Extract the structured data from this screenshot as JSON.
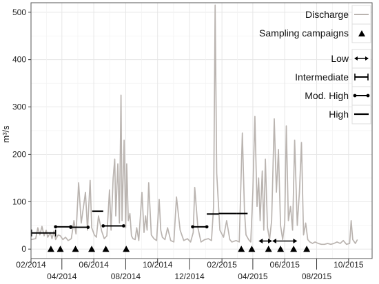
{
  "chart_data": {
    "type": "line",
    "title": "",
    "xlabel": "",
    "ylabel": "m³/s",
    "ylim": [
      -20,
      520
    ],
    "xlim": [
      "2014-02-01",
      "2015-11-15"
    ],
    "yticks": [
      "0",
      "100",
      "200",
      "300",
      "400",
      "500"
    ],
    "xticks": [
      {
        "date": "2014-02-01",
        "label": "02/2014",
        "row": "upper"
      },
      {
        "date": "2014-04-01",
        "label": "04/2014",
        "row": "lower"
      },
      {
        "date": "2014-06-01",
        "label": "06/2014",
        "row": "upper"
      },
      {
        "date": "2014-08-01",
        "label": "08/2014",
        "row": "lower"
      },
      {
        "date": "2014-10-01",
        "label": "10/2014",
        "row": "upper"
      },
      {
        "date": "2014-12-01",
        "label": "12/2014",
        "row": "lower"
      },
      {
        "date": "2015-02-01",
        "label": "02/2015",
        "row": "upper"
      },
      {
        "date": "2015-04-01",
        "label": "04/2015",
        "row": "lower"
      },
      {
        "date": "2015-06-01",
        "label": "06/2015",
        "row": "upper"
      },
      {
        "date": "2015-08-01",
        "label": "08/2015",
        "row": "lower"
      },
      {
        "date": "2015-10-01",
        "label": "10/2015",
        "row": "upper"
      }
    ],
    "grid": true,
    "legend_position": "top-right",
    "colors": {
      "discharge": "#bab4b0",
      "marks": "#000000",
      "grid": "#e6e6e6",
      "border": "#555555"
    },
    "series": [
      {
        "name": "Discharge",
        "type": "line",
        "x": [
          "2014-02-01",
          "2014-02-10",
          "2014-02-14",
          "2014-02-18",
          "2014-02-22",
          "2014-02-26",
          "2014-03-02",
          "2014-03-05",
          "2014-03-10",
          "2014-03-13",
          "2014-03-17",
          "2014-03-20",
          "2014-03-25",
          "2014-03-29",
          "2014-04-03",
          "2014-04-08",
          "2014-04-13",
          "2014-04-19",
          "2014-04-24",
          "2014-04-28",
          "2014-05-03",
          "2014-05-08",
          "2014-05-13",
          "2014-05-16",
          "2014-05-20",
          "2014-05-25",
          "2014-05-28",
          "2014-06-02",
          "2014-06-06",
          "2014-06-10",
          "2014-06-16",
          "2014-06-21",
          "2014-06-26",
          "2014-07-01",
          "2014-07-04",
          "2014-07-08",
          "2014-07-11",
          "2014-07-13",
          "2014-07-17",
          "2014-07-20",
          "2014-07-23",
          "2014-07-25",
          "2014-07-29",
          "2014-08-01",
          "2014-08-03",
          "2014-08-06",
          "2014-08-09",
          "2014-08-12",
          "2014-08-15",
          "2014-08-19",
          "2014-08-22",
          "2014-08-26",
          "2014-09-01",
          "2014-09-05",
          "2014-09-08",
          "2014-09-11",
          "2014-09-14",
          "2014-09-19",
          "2014-09-24",
          "2014-09-29",
          "2014-10-04",
          "2014-10-07",
          "2014-10-10",
          "2014-10-15",
          "2014-10-20",
          "2014-10-26",
          "2014-11-01",
          "2014-11-06",
          "2014-11-13",
          "2014-11-20",
          "2014-11-27",
          "2014-12-03",
          "2014-12-08",
          "2014-12-11",
          "2014-12-17",
          "2014-12-23",
          "2014-12-30",
          "2015-01-06",
          "2015-01-12",
          "2015-01-16",
          "2015-01-19",
          "2015-01-22",
          "2015-01-28",
          "2015-02-04",
          "2015-02-10",
          "2015-02-16",
          "2015-02-20",
          "2015-02-28",
          "2015-03-06",
          "2015-03-12",
          "2015-03-16",
          "2015-03-19",
          "2015-03-24",
          "2015-03-28",
          "2015-04-01",
          "2015-04-05",
          "2015-04-09",
          "2015-04-12",
          "2015-04-15",
          "2015-04-19",
          "2015-04-22",
          "2015-04-25",
          "2015-04-29",
          "2015-05-03",
          "2015-05-07",
          "2015-05-12",
          "2015-05-16",
          "2015-05-20",
          "2015-05-24",
          "2015-05-28",
          "2015-06-01",
          "2015-06-04",
          "2015-06-08",
          "2015-06-12",
          "2015-06-16",
          "2015-06-20",
          "2015-06-25",
          "2015-06-29",
          "2015-07-03",
          "2015-07-07",
          "2015-07-11",
          "2015-07-15",
          "2015-07-19",
          "2015-07-24",
          "2015-07-29",
          "2015-08-04",
          "2015-08-10",
          "2015-08-16",
          "2015-08-22",
          "2015-08-28",
          "2015-09-03",
          "2015-09-09",
          "2015-09-15",
          "2015-09-21",
          "2015-09-27",
          "2015-10-03",
          "2015-10-06",
          "2015-10-09",
          "2015-10-14",
          "2015-10-18"
        ],
        "y": [
          20,
          22,
          45,
          30,
          48,
          28,
          40,
          25,
          35,
          22,
          38,
          20,
          30,
          28,
          20,
          25,
          18,
          22,
          60,
          32,
          140,
          55,
          95,
          120,
          40,
          145,
          45,
          30,
          25,
          70,
          38,
          22,
          28,
          125,
          40,
          150,
          190,
          70,
          180,
          55,
          325,
          60,
          230,
          45,
          180,
          60,
          75,
          28,
          22,
          20,
          45,
          18,
          120,
          35,
          70,
          40,
          140,
          30,
          22,
          18,
          105,
          40,
          25,
          20,
          45,
          18,
          15,
          110,
          40,
          18,
          22,
          15,
          35,
          130,
          45,
          15,
          20,
          22,
          18,
          90,
          515,
          160,
          40,
          25,
          60,
          20,
          15,
          18,
          15,
          245,
          80,
          30,
          20,
          15,
          120,
          280,
          90,
          150,
          60,
          165,
          40,
          190,
          45,
          20,
          60,
          275,
          120,
          210,
          50,
          20,
          55,
          260,
          60,
          90,
          40,
          230,
          50,
          120,
          225,
          30,
          55,
          20,
          15,
          12,
          15,
          12,
          10,
          10,
          12,
          10,
          12,
          15,
          12,
          18,
          10,
          12,
          60,
          20,
          12,
          20
        ]
      },
      {
        "name": "Sampling campaigns",
        "type": "scatter",
        "marker": "triangle",
        "x": [
          "2014-03-11",
          "2014-03-29",
          "2014-04-27",
          "2014-05-28",
          "2014-06-24",
          "2014-08-02",
          "2015-03-10",
          "2015-03-30",
          "2015-05-01",
          "2015-05-24",
          "2015-06-18",
          "2015-07-13"
        ],
        "y": [
          0,
          0,
          0,
          0,
          0,
          0,
          0,
          0,
          0,
          0,
          0,
          0
        ]
      }
    ],
    "bars": [
      {
        "category": "Intermediate",
        "x1": "2014-02-02",
        "x2": "2014-03-20",
        "y": 34
      },
      {
        "category": "Mod. High",
        "x1": "2014-03-20",
        "x2": "2014-04-18",
        "y": 47
      },
      {
        "category": "Mod. High",
        "x1": "2014-04-18",
        "x2": "2014-05-21",
        "y": 46
      },
      {
        "category": "High",
        "x1": "2014-05-29",
        "x2": "2014-06-19",
        "y": 80
      },
      {
        "category": "Mod. High",
        "x1": "2014-06-19",
        "x2": "2014-07-28",
        "y": 49
      },
      {
        "category": "Mod. High",
        "x1": "2014-12-07",
        "x2": "2015-01-03",
        "y": 47
      },
      {
        "category": "High",
        "x1": "2015-01-03",
        "x2": "2015-01-26",
        "y": 74
      },
      {
        "category": "High",
        "x1": "2015-01-26",
        "x2": "2015-03-01",
        "y": 75
      },
      {
        "category": "High",
        "x1": "2015-03-01",
        "x2": "2015-03-22",
        "y": 75
      },
      {
        "category": "Low",
        "x1": "2015-04-12",
        "x2": "2015-05-08",
        "y": 17
      },
      {
        "category": "Low",
        "x1": "2015-05-08",
        "x2": "2015-06-25",
        "y": 17
      }
    ],
    "legend": {
      "discharge": "Discharge",
      "sampling": "Sampling campaigns",
      "low": "Low",
      "intermediate": "Intermediate",
      "mod_high": "Mod. High",
      "high": "High"
    }
  }
}
